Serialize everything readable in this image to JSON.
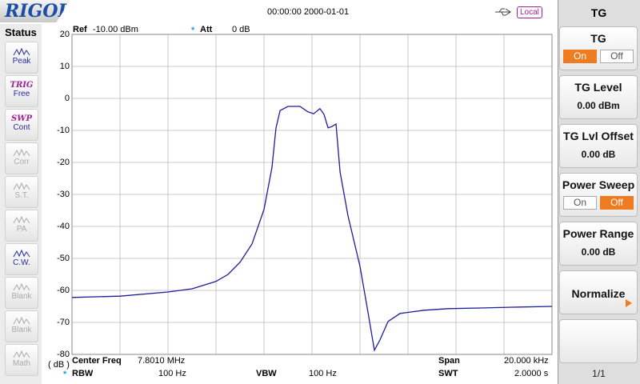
{
  "header": {
    "logo": "RIGOL",
    "datetime": "00:00:00 2000-01-01",
    "mode": "Local"
  },
  "status": {
    "title": "Status",
    "items": [
      {
        "label": "Peak"
      },
      {
        "tag": "TRIG",
        "label": "Free"
      },
      {
        "tag": "SWP",
        "label": "Cont"
      },
      {
        "label": "Corr"
      },
      {
        "label": "S.T."
      },
      {
        "label": "PA"
      },
      {
        "label": "C.W."
      },
      {
        "label": "Blank"
      },
      {
        "label": "Blank"
      },
      {
        "label": "Math"
      }
    ]
  },
  "chart_data": {
    "type": "line",
    "ref_label": "Ref",
    "ref_value": "-10.00 dBm",
    "att_marker": "*",
    "att_label": "Att",
    "att_value": "0 dB",
    "y_unit": "( dB )",
    "x": [
      7.791,
      7.793,
      7.795,
      7.796,
      7.797,
      7.7975,
      7.798,
      7.7985,
      7.799,
      7.79933,
      7.7995,
      7.79967,
      7.8,
      7.8005,
      7.80083,
      7.80107,
      7.80133,
      7.8015,
      7.80167,
      7.80183,
      7.802,
      7.80217,
      7.8025,
      7.803,
      7.80333,
      7.8036,
      7.80383,
      7.80417,
      7.80467,
      7.80567,
      7.80667,
      7.808,
      7.80967,
      7.811
    ],
    "values": [
      -62.2,
      -61.8,
      -60.5,
      -59.5,
      -57.2,
      -55,
      -51.2,
      -45.5,
      -34.7,
      -21.7,
      -9.2,
      -3.8,
      -2.5,
      -2.5,
      -4.2,
      -4.8,
      -3.2,
      -5,
      -9.2,
      -8.8,
      -8,
      -23,
      -36.7,
      -52.5,
      -66.7,
      -78.7,
      -75.5,
      -69.7,
      -67.2,
      -66.2,
      -65.7,
      -65.5,
      -65.2,
      -65
    ],
    "color": "#1c1c9c",
    "xlim": [
      7.791,
      7.811
    ],
    "ylim": [
      -80,
      20
    ],
    "yticks": [
      20,
      10,
      0,
      -10,
      -20,
      -30,
      -40,
      -50,
      -60,
      -70,
      -80
    ],
    "grid": true
  },
  "settings": {
    "center_label": "Center Freq",
    "center_value": "7.8010 MHz",
    "span_label": "Span",
    "span_value": "20.000 kHz",
    "rbw_marker": "*",
    "rbw_label": "RBW",
    "rbw_value": "100 Hz",
    "vbw_label": "VBW",
    "vbw_value": "100 Hz",
    "swt_label": "SWT",
    "swt_value": "2.0000 s"
  },
  "menu": {
    "title": "TG",
    "items": [
      {
        "label": "TG",
        "options": [
          "On",
          "Off"
        ]
      },
      {
        "label": "TG Level",
        "value": "0.00 dBm"
      },
      {
        "label": "TG Lvl Offset",
        "value": "0.00 dB"
      },
      {
        "label": "Power Sweep",
        "options": [
          "On",
          "Off"
        ]
      },
      {
        "label": "Power Range",
        "value": "0.00 dB"
      },
      {
        "label": "Normalize"
      }
    ],
    "page": "1/1"
  }
}
